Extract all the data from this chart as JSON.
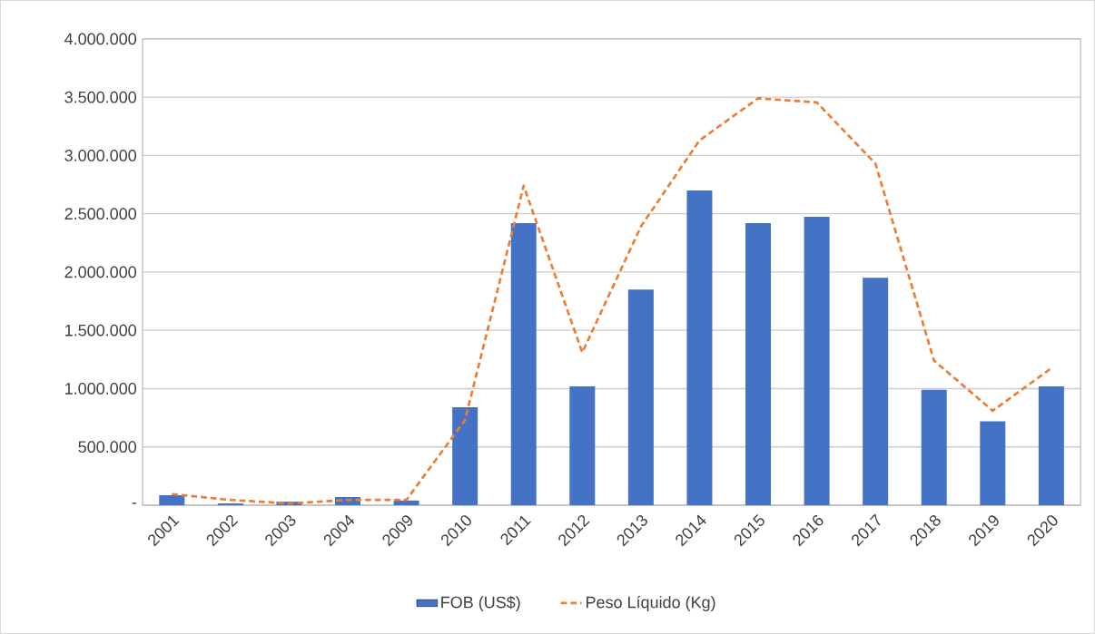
{
  "chart_data": {
    "type": "bar",
    "categories": [
      "2001",
      "2002",
      "2003",
      "2004",
      "2009",
      "2010",
      "2011",
      "2012",
      "2013",
      "2014",
      "2015",
      "2016",
      "2017",
      "2018",
      "2019",
      "2020"
    ],
    "series": [
      {
        "name": "FOB (US$)",
        "color": "#4472c4",
        "values": [
          85000,
          15000,
          30000,
          70000,
          40000,
          840000,
          2420000,
          1020000,
          1850000,
          2700000,
          2420000,
          2475000,
          1950000,
          990000,
          720000,
          1020000
        ]
      },
      {
        "name": "Peso Líquido (Kg)",
        "type": "line",
        "color": "#ed7d31",
        "line_style": "dashed",
        "values": [
          95000,
          45000,
          15000,
          45000,
          45000,
          730000,
          2740000,
          1310000,
          2390000,
          3130000,
          3490000,
          3455000,
          2930000,
          1240000,
          810000,
          1175000
        ]
      }
    ],
    "ylim": [
      0,
      4000000
    ],
    "yticks": [
      {
        "value": 0,
        "label": "-"
      },
      {
        "value": 500000,
        "label": "500.000"
      },
      {
        "value": 1000000,
        "label": "1.000.000"
      },
      {
        "value": 1500000,
        "label": "1.500.000"
      },
      {
        "value": 2000000,
        "label": "2.000.000"
      },
      {
        "value": 2500000,
        "label": "2.500.000"
      },
      {
        "value": 3000000,
        "label": "3.000.000"
      },
      {
        "value": 3500000,
        "label": "3.500.000"
      },
      {
        "value": 4000000,
        "label": "4.000.000"
      }
    ],
    "grid": "y",
    "legend": "bottom"
  }
}
